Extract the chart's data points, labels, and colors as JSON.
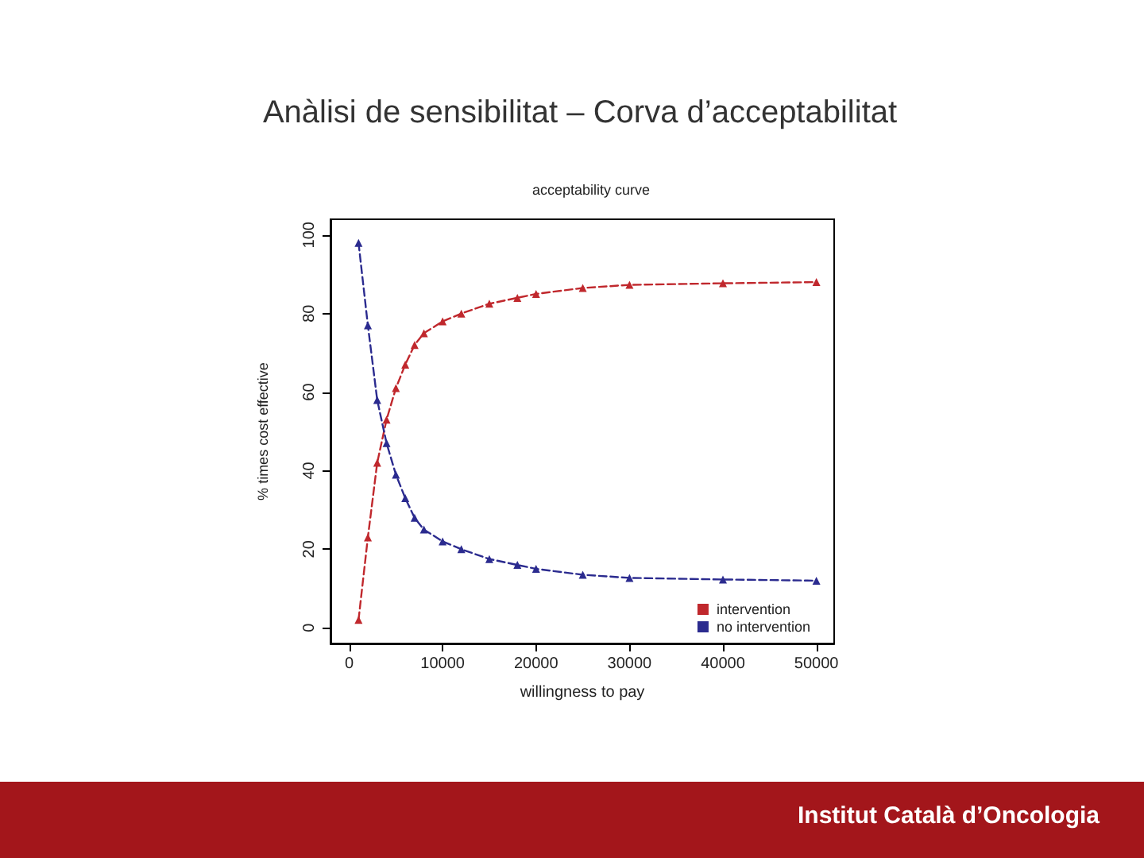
{
  "chart_data": {
    "type": "line",
    "title": "Anàlisi de sensibilitat – Corva d’acceptabilitat",
    "subtitle": "acceptability curve",
    "xlabel": "willingness to pay",
    "ylabel": "% times cost effective",
    "annotations": [
      "Institut Català d’Oncologia"
    ],
    "x": [
      1000,
      2000,
      3000,
      4000,
      5000,
      6000,
      7000,
      8000,
      10000,
      12000,
      15000,
      18000,
      20000,
      25000,
      30000,
      40000,
      50000
    ],
    "series": [
      {
        "name": "intervention",
        "color": "#c0282d",
        "values": [
          2,
          23,
          42,
          53,
          61,
          67,
          72,
          75,
          78,
          80,
          82.5,
          84,
          85,
          86.5,
          87.3,
          87.7,
          88
        ]
      },
      {
        "name": "no intervention",
        "color": "#2b2b8f",
        "values": [
          98,
          77,
          58,
          47,
          39,
          33,
          28,
          25,
          22,
          20,
          17.5,
          16,
          15,
          13.5,
          12.7,
          12.3,
          12
        ]
      }
    ],
    "xlim": [
      -2000,
      51900
    ],
    "xticks": [
      0,
      10000,
      20000,
      30000,
      40000,
      50000
    ],
    "ylim": [
      -4,
      104
    ],
    "yticks": [
      0,
      20,
      40,
      60,
      80,
      100
    ],
    "grid": false,
    "legend": "bottom right",
    "marker": "triangle",
    "line_style": "dashed"
  }
}
